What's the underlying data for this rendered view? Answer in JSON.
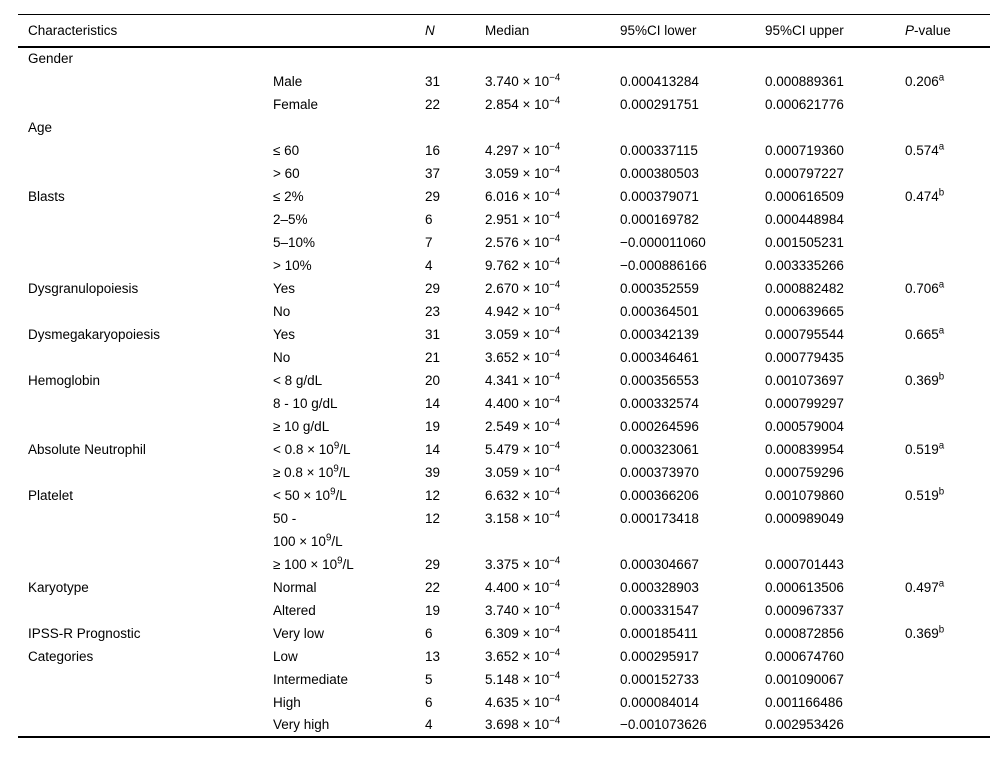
{
  "table": {
    "columns": [
      "Characteristics",
      "",
      "*N*",
      "Median",
      "95%CI lower",
      "95%CI upper",
      "*P*-value"
    ],
    "rows": [
      [
        "Gender",
        "",
        "",
        "",
        "",
        "",
        ""
      ],
      [
        "",
        "Male",
        "31",
        "3.740 × 10^−4^",
        "0.000413284",
        "0.000889361",
        "0.206^a^"
      ],
      [
        "",
        "Female",
        "22",
        "2.854 × 10^−4^",
        "0.000291751",
        "0.000621776",
        ""
      ],
      [
        "Age",
        "",
        "",
        "",
        "",
        "",
        ""
      ],
      [
        "",
        "≤ 60",
        "16",
        "4.297 × 10^−4^",
        "0.000337115",
        "0.000719360",
        "0.574^a^"
      ],
      [
        "",
        "> 60",
        "37",
        "3.059 × 10^−4^",
        "0.000380503",
        "0.000797227",
        ""
      ],
      [
        "Blasts",
        "≤ 2%",
        "29",
        "6.016 × 10^−4^",
        "0.000379071",
        "0.000616509",
        "0.474^b^"
      ],
      [
        "",
        "2–5%",
        "6",
        "2.951 × 10^−4^",
        "0.000169782",
        "0.000448984",
        ""
      ],
      [
        "",
        "5–10%",
        "7",
        "2.576 × 10^−4^",
        "−0.000011060",
        "0.001505231",
        ""
      ],
      [
        "",
        "> 10%",
        "4",
        "9.762 × 10^−4^",
        "−0.000886166",
        "0.003335266",
        ""
      ],
      [
        "Dysgranulopoiesis",
        "Yes",
        "29",
        "2.670 × 10^−4^",
        "0.000352559",
        "0.000882482",
        "0.706^a^"
      ],
      [
        "",
        "No",
        "23",
        "4.942 × 10^−4^",
        "0.000364501",
        "0.000639665",
        ""
      ],
      [
        "Dysmegakaryopoiesis",
        "Yes",
        "31",
        "3.059 × 10^−4^",
        "0.000342139",
        "0.000795544",
        "0.665^a^"
      ],
      [
        "",
        "No",
        "21",
        "3.652 × 10^−4^",
        "0.000346461",
        "0.000779435",
        ""
      ],
      [
        "Hemoglobin",
        "< 8 g/dL",
        "20",
        "4.341 × 10^−4^",
        "0.000356553",
        "0.001073697",
        "0.369^b^"
      ],
      [
        "",
        "8 - 10 g/dL",
        "14",
        "4.400 × 10^−4^",
        "0.000332574",
        "0.000799297",
        ""
      ],
      [
        "",
        "≥ 10 g/dL",
        "19",
        "2.549 × 10^−4^",
        "0.000264596",
        "0.000579004",
        ""
      ],
      [
        "Absolute Neutrophil",
        "< 0.8 × 10^9^/L",
        "14",
        "5.479 × 10^−4^",
        "0.000323061",
        "0.000839954",
        "0.519^a^"
      ],
      [
        "",
        "≥ 0.8 × 10^9^/L",
        "39",
        "3.059 × 10^−4^",
        "0.000373970",
        "0.000759296",
        ""
      ],
      [
        "Platelet",
        "< 50 × 10^9^/L",
        "12",
        "6.632 × 10^−4^",
        "0.000366206",
        "0.001079860",
        "0.519^b^"
      ],
      [
        "",
        "50 -",
        "12",
        "3.158 × 10^−4^",
        "0.000173418",
        "0.000989049",
        ""
      ],
      [
        "",
        "100 × 10^9^/L",
        "",
        "",
        "",
        "",
        ""
      ],
      [
        "",
        "≥ 100 × 10^9^/L",
        "29",
        "3.375 × 10^−4^",
        "0.000304667",
        "0.000701443",
        ""
      ],
      [
        "Karyotype",
        "Normal",
        "22",
        "4.400 × 10^−4^",
        "0.000328903",
        "0.000613506",
        "0.497^a^"
      ],
      [
        "",
        "Altered",
        "19",
        "3.740 × 10^−4^",
        "0.000331547",
        "0.000967337",
        ""
      ],
      [
        "IPSS-R Prognostic",
        "Very low",
        "6",
        "6.309 × 10^−4^",
        "0.000185411",
        "0.000872856",
        "0.369^b^"
      ],
      [
        "Categories",
        "Low",
        "13",
        "3.652 × 10^−4^",
        "0.000295917",
        "0.000674760",
        ""
      ],
      [
        "",
        "Intermediate",
        "5",
        "5.148 × 10^−4^",
        "0.000152733",
        "0.001090067",
        ""
      ],
      [
        "",
        "High",
        "6",
        "4.635 × 10^−4^",
        "0.000084014",
        "0.001166486",
        ""
      ],
      [
        "",
        "Very high",
        "4",
        "3.698 × 10^−4^",
        "−0.001073626",
        "0.002953426",
        ""
      ]
    ]
  }
}
